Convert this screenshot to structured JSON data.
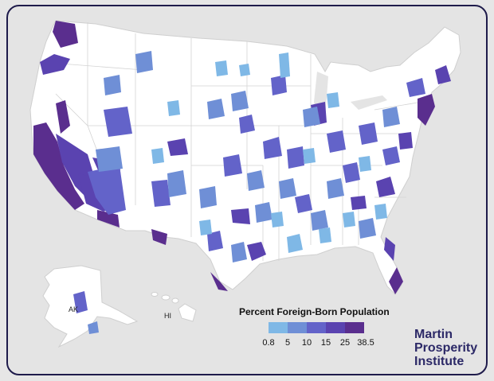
{
  "legend": {
    "title": "Percent Foreign-Born Population",
    "ticks": [
      "0.8",
      "5",
      "10",
      "15",
      "25",
      "38.5"
    ],
    "colors": [
      "#7fb8e6",
      "#6f8fd6",
      "#6363c9",
      "#5a43b0",
      "#5a2e8e"
    ]
  },
  "labels": {
    "alaska": "AK",
    "hawaii": "HI"
  },
  "brand": {
    "line1": "Martin",
    "line2": "Prosperity",
    "line3": "Institute",
    "color": "#2c2967"
  },
  "colors": {
    "background": "#e4e4e4",
    "land": "#ffffff",
    "frame": "#1e1b4b",
    "border": "#d0d0d0"
  }
}
